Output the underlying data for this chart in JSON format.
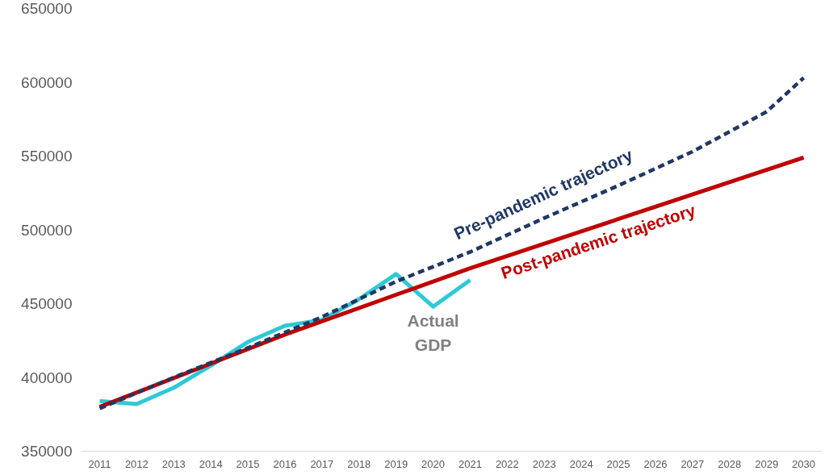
{
  "chart_data": {
    "type": "line",
    "xlim": [
      2010.5,
      2030.5
    ],
    "ylim": [
      350000,
      650000
    ],
    "xticks": [
      2011,
      2012,
      2013,
      2014,
      2015,
      2016,
      2017,
      2018,
      2019,
      2020,
      2021,
      2022,
      2023,
      2024,
      2025,
      2026,
      2027,
      2028,
      2029,
      2030
    ],
    "yticks": [
      350000,
      400000,
      450000,
      500000,
      550000,
      600000,
      650000
    ],
    "grid": false,
    "series": [
      {
        "name": "Actual GDP",
        "color": "#2ec9d6",
        "line_style": "solid",
        "x": [
          2011,
          2012,
          2013,
          2014,
          2015,
          2016,
          2017,
          2018,
          2019,
          2020,
          2021
        ],
        "values": [
          384000,
          382000,
          393000,
          408000,
          424000,
          435000,
          439000,
          453000,
          470000,
          448000,
          466000
        ]
      },
      {
        "name": "Post-pandemic trajectory",
        "color": "#c00000",
        "line_style": "solid",
        "x": [
          2011,
          2016,
          2019,
          2021,
          2030
        ],
        "values": [
          380000,
          429000,
          456000,
          474000,
          549000
        ]
      },
      {
        "name": "Pre-pandemic trajectory",
        "color": "#1f3864",
        "line_style": "dashed",
        "x": [
          2011,
          2013,
          2015,
          2017,
          2019,
          2021,
          2023,
          2025,
          2027,
          2029,
          2030
        ],
        "values": [
          379000,
          400000,
          420000,
          441000,
          465000,
          485000,
          508000,
          530000,
          553000,
          580000,
          603000
        ]
      }
    ]
  }
}
